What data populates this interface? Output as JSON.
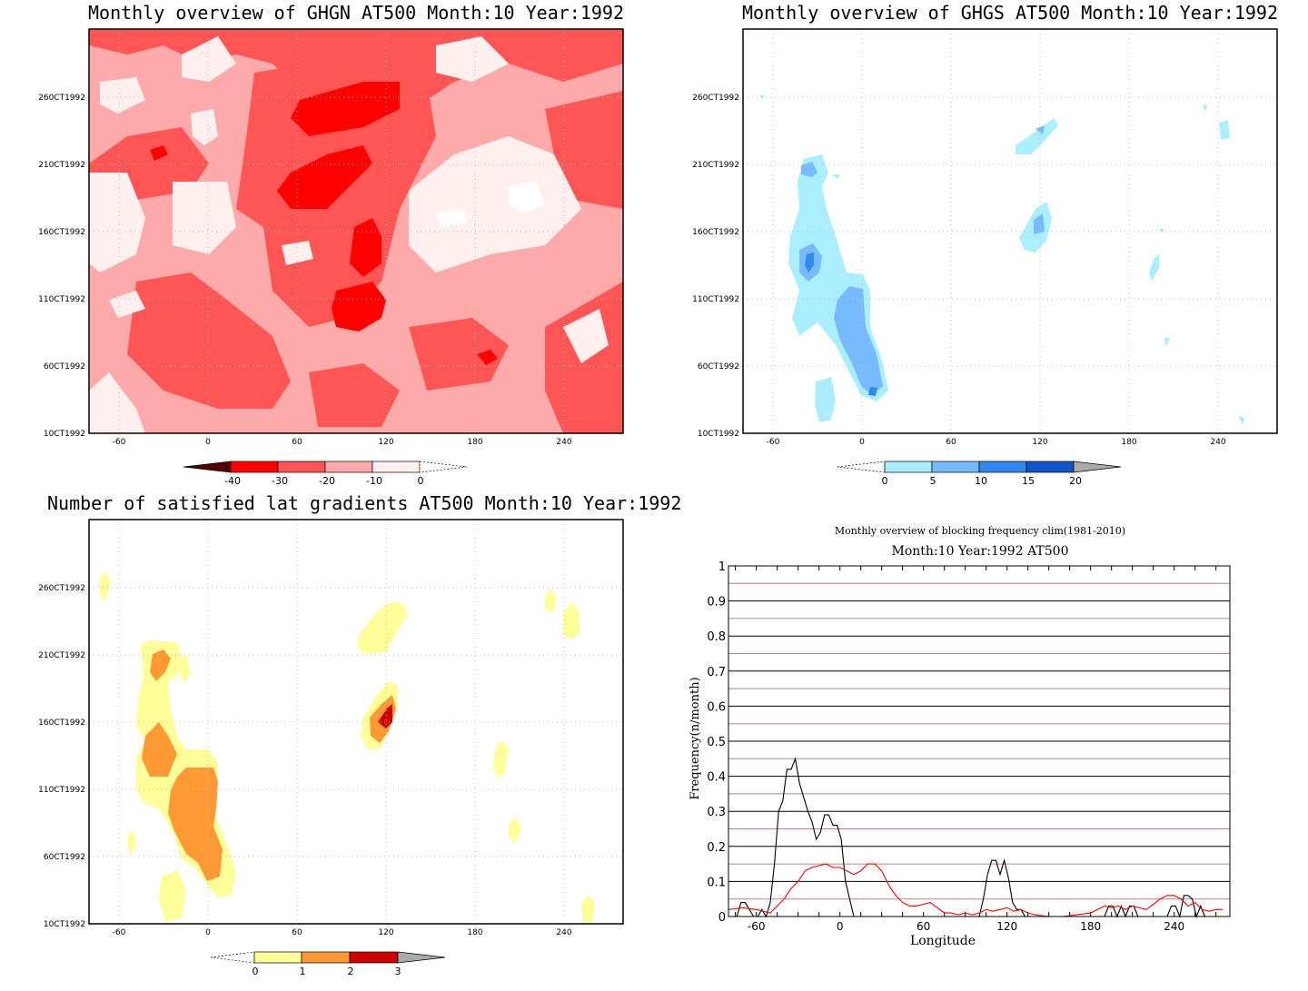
{
  "panels": {
    "ghgn": {
      "title": "Monthly overview of GHGN AT500 Month:10 Year:1992",
      "y_ticks": [
        "10CT1992",
        "60CT1992",
        "110CT1992",
        "160CT1992",
        "210CT1992",
        "260CT1992"
      ],
      "x_ticks": [
        "-60",
        "0",
        "60",
        "120",
        "180",
        "240"
      ],
      "colorbar_labels": [
        "-40",
        "-30",
        "-20",
        "-10",
        "0"
      ],
      "colors": [
        "#550000",
        "#ff0000",
        "#ff5555",
        "#ffaaaa",
        "#fff0f0"
      ]
    },
    "ghgs": {
      "title": "Monthly overview of GHGS AT500 Month:10 Year:1992",
      "y_ticks": [
        "10CT1992",
        "60CT1992",
        "110CT1992",
        "160CT1992",
        "210CT1992",
        "260CT1992"
      ],
      "x_ticks": [
        "-60",
        "0",
        "60",
        "120",
        "180",
        "240"
      ],
      "colorbar_labels": [
        "0",
        "5",
        "10",
        "15",
        "20"
      ],
      "colors": [
        "#aaeeff",
        "#77bbff",
        "#3388ee",
        "#1155cc",
        "#aaaaaa"
      ]
    },
    "lat": {
      "title": "Number of satisfied lat gradients AT500 Month:10 Year:1992",
      "y_ticks": [
        "10CT1992",
        "60CT1992",
        "110CT1992",
        "160CT1992",
        "210CT1992",
        "260CT1992"
      ],
      "x_ticks": [
        "-60",
        "0",
        "60",
        "120",
        "180",
        "240"
      ],
      "colorbar_labels": [
        "0",
        "1",
        "2",
        "3"
      ],
      "colors": [
        "#ffff99",
        "#ff9933",
        "#cc0000",
        "#aaaaaa"
      ]
    }
  },
  "chart_data": [
    {
      "type": "line",
      "title": "Monthly overview of blocking frequency clim(1981-2010)",
      "subtitle": "Month:10 Year:1992  AT500",
      "xlabel": "Longitude",
      "ylabel": "Frequency(n/month)",
      "xlim": [
        -80,
        280
      ],
      "ylim": [
        0,
        1
      ],
      "x_ticks": [
        -60,
        0,
        60,
        120,
        180,
        240
      ],
      "y_ticks": [
        0,
        0.1,
        0.2,
        0.3,
        0.4,
        0.5,
        0.6,
        0.7,
        0.8,
        0.9,
        1
      ],
      "x_tick_labels": [
        "-60",
        "0",
        "60",
        "120",
        "180",
        "240"
      ],
      "y_tick_labels": [
        "0",
        "0.1",
        "0.2",
        "0.3",
        "0.4",
        "0.5",
        "0.6",
        "0.7",
        "0.8",
        "0.9",
        "1"
      ],
      "colors": {
        "year": "#000000",
        "clim": "#ff0000",
        "minor_grid": "#c08080"
      },
      "series": [
        {
          "color": "#000000",
          "x": [
            -80,
            -74,
            -71,
            -68,
            -65,
            -62,
            -59,
            -56,
            -53,
            -50,
            -47,
            -44,
            -41,
            -38,
            -35,
            -32,
            -29,
            -26,
            -23,
            -20,
            -17,
            -14,
            -11,
            -8,
            -5,
            -2,
            1,
            4,
            7,
            10,
            13,
            16,
            19,
            22,
            100,
            103,
            106,
            109,
            112,
            115,
            118,
            121,
            124,
            127,
            130,
            133,
            190,
            193,
            196,
            199,
            202,
            205,
            208,
            211,
            214,
            217,
            235,
            238,
            241,
            244,
            247,
            250,
            253,
            256,
            259,
            262
          ],
          "y": [
            0,
            0,
            0.04,
            0.04,
            0.02,
            0,
            0,
            0.02,
            0,
            0.04,
            0.15,
            0.3,
            0.33,
            0.42,
            0.42,
            0.45,
            0.38,
            0.34,
            0.3,
            0.27,
            0.22,
            0.24,
            0.29,
            0.29,
            0.26,
            0.26,
            0.22,
            0.1,
            0.05,
            0,
            0,
            0,
            0,
            0,
            0,
            0.05,
            0.12,
            0.16,
            0.16,
            0.12,
            0.16,
            0.11,
            0.04,
            0.02,
            0.02,
            0,
            0,
            0.03,
            0.03,
            0,
            0.03,
            0,
            0.03,
            0.03,
            0,
            0,
            0,
            0.03,
            0.03,
            0,
            0.06,
            0.06,
            0.05,
            0,
            0.03,
            0
          ]
        },
        {
          "color": "#ff0000",
          "x": [
            -80,
            -70,
            -60,
            -50,
            -45,
            -40,
            -35,
            -30,
            -25,
            -20,
            -15,
            -10,
            -5,
            0,
            5,
            10,
            15,
            20,
            25,
            30,
            35,
            40,
            45,
            50,
            55,
            60,
            65,
            70,
            75,
            80,
            85,
            90,
            95,
            100,
            105,
            110,
            115,
            120,
            125,
            130,
            135,
            140,
            150,
            160,
            170,
            180,
            185,
            190,
            195,
            200,
            205,
            210,
            215,
            220,
            225,
            230,
            235,
            240,
            245,
            250,
            255,
            260,
            265,
            270,
            275
          ],
          "y": [
            0.02,
            0.025,
            0.02,
            0.01,
            0.03,
            0.05,
            0.08,
            0.1,
            0.13,
            0.14,
            0.145,
            0.15,
            0.14,
            0.14,
            0.13,
            0.12,
            0.13,
            0.15,
            0.15,
            0.13,
            0.09,
            0.06,
            0.04,
            0.03,
            0.03,
            0.035,
            0.04,
            0.025,
            0.01,
            0.01,
            0.005,
            0.01,
            0.005,
            0.01,
            0.02,
            0.015,
            0.02,
            0.025,
            0.015,
            0.02,
            0.01,
            0.005,
            0,
            0,
            0.005,
            0.01,
            0.02,
            0.03,
            0.025,
            0.03,
            0.02,
            0.03,
            0.025,
            0.02,
            0.035,
            0.05,
            0.06,
            0.06,
            0.05,
            0.03,
            0.04,
            0.02,
            0.015,
            0.02,
            0.02
          ]
        }
      ]
    }
  ]
}
